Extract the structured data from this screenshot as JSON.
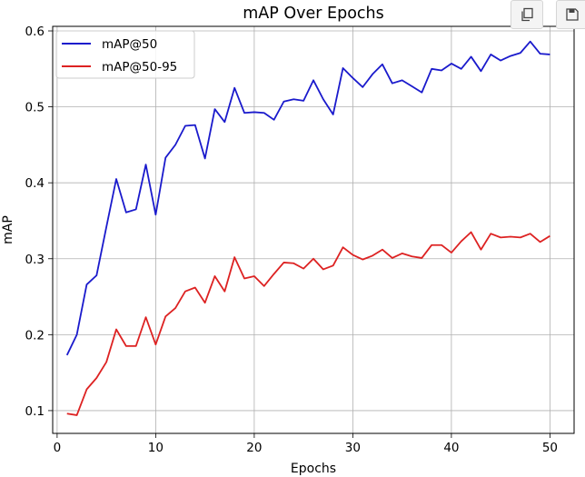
{
  "toolbar": {
    "copy_icon": "copy-icon",
    "save_icon": "save-icon"
  },
  "chart_data": {
    "type": "line",
    "title": "mAP Over Epochs",
    "xlabel": "Epochs",
    "ylabel": "mAP",
    "xlim": [
      -0.45,
      52.45
    ],
    "ylim": [
      0.07,
      0.606
    ],
    "xticks": [
      0,
      10,
      20,
      30,
      40,
      50
    ],
    "yticks": [
      0.1,
      0.2,
      0.3,
      0.4,
      0.5,
      0.6
    ],
    "grid": true,
    "legend_position": "top-left",
    "x": [
      1,
      2,
      3,
      4,
      5,
      6,
      7,
      8,
      9,
      10,
      11,
      12,
      13,
      14,
      15,
      16,
      17,
      18,
      19,
      20,
      21,
      22,
      23,
      24,
      25,
      26,
      27,
      28,
      29,
      30,
      31,
      32,
      33,
      34,
      35,
      36,
      37,
      38,
      39,
      40,
      41,
      42,
      43,
      44,
      45,
      46,
      47,
      48,
      49,
      50
    ],
    "series": [
      {
        "name": "mAP@50",
        "color": "#1a1acc",
        "values": [
          0.173,
          0.2,
          0.266,
          0.278,
          0.342,
          0.405,
          0.361,
          0.365,
          0.424,
          0.358,
          0.433,
          0.45,
          0.475,
          0.476,
          0.432,
          0.497,
          0.48,
          0.525,
          0.492,
          0.493,
          0.492,
          0.483,
          0.507,
          0.51,
          0.508,
          0.535,
          0.51,
          0.49,
          0.551,
          0.538,
          0.526,
          0.543,
          0.556,
          0.531,
          0.535,
          0.527,
          0.519,
          0.55,
          0.548,
          0.557,
          0.55,
          0.566,
          0.547,
          0.569,
          0.561,
          0.567,
          0.571,
          0.586,
          0.57,
          0.569
        ]
      },
      {
        "name": "mAP@50-95",
        "color": "#dd2222",
        "values": [
          0.096,
          0.094,
          0.128,
          0.143,
          0.164,
          0.207,
          0.185,
          0.185,
          0.223,
          0.187,
          0.224,
          0.235,
          0.257,
          0.262,
          0.242,
          0.277,
          0.257,
          0.302,
          0.274,
          0.277,
          0.264,
          0.28,
          0.295,
          0.294,
          0.287,
          0.3,
          0.286,
          0.291,
          0.315,
          0.305,
          0.299,
          0.304,
          0.312,
          0.301,
          0.307,
          0.303,
          0.301,
          0.318,
          0.318,
          0.308,
          0.323,
          0.335,
          0.312,
          0.333,
          0.328,
          0.329,
          0.328,
          0.333,
          0.322,
          0.33
        ]
      }
    ]
  }
}
